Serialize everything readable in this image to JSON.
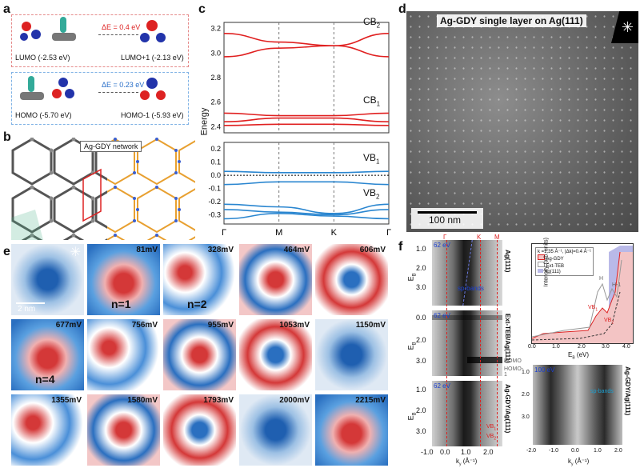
{
  "panel_a": {
    "label": "a",
    "lumo": "LUMO (-2.53 eV)",
    "lumo1": "LUMO+1 (-2.13 eV)",
    "delta_top": "ΔE = 0.4 eV",
    "homo": "HOMO (-5.70 eV)",
    "homo1": "HOMO-1 (-5.93 eV)",
    "delta_bottom": "ΔE = 0.23 eV"
  },
  "panel_b": {
    "label": "b",
    "title": "Ag-GDY network"
  },
  "panel_c": {
    "label": "c",
    "ylabel": "Energy",
    "band_labels": {
      "cb2": "CB",
      "cb2_sub": "2",
      "cb1": "CB",
      "cb1_sub": "1",
      "vb1": "VB",
      "vb1_sub": "1",
      "vb2": "VB",
      "vb2_sub": "2"
    },
    "chart_data": {
      "type": "line",
      "x_ticks": [
        "Γ",
        "M",
        "K",
        "Γ"
      ],
      "y_ticks_upper": [
        "3.2",
        "3.0",
        "2.8",
        "2.6",
        "2.4"
      ],
      "y_ticks_lower": [
        "0.2",
        "0.1",
        "0.0",
        "-0.1",
        "-0.2",
        "-0.3"
      ],
      "x": [
        0,
        1,
        2,
        3
      ],
      "series": [
        {
          "values": [
            3.16,
            3.09,
            3.06,
            3.16
          ]
        },
        {
          "values": [
            2.97,
            3.04,
            3.06,
            2.97
          ]
        },
        {
          "values": [
            2.51,
            2.49,
            2.49,
            2.51
          ]
        },
        {
          "values": [
            2.44,
            2.47,
            2.47,
            2.44
          ]
        },
        {
          "values": [
            2.41,
            2.42,
            2.42,
            2.41
          ]
        },
        {
          "values": [
            0.03,
            0.02,
            0.02,
            0.03
          ]
        },
        {
          "values": [
            -0.07,
            -0.05,
            -0.05,
            -0.07
          ]
        },
        {
          "values": [
            -0.22,
            -0.24,
            -0.29,
            -0.22
          ]
        },
        {
          "values": [
            -0.26,
            -0.28,
            -0.3,
            -0.26
          ]
        },
        {
          "values": [
            -0.33,
            -0.29,
            -0.31,
            -0.33
          ]
        }
      ]
    }
  },
  "panel_d": {
    "label": "d",
    "title": "Ag-GDY single layer on Ag(111)",
    "scalebar": "100 nm"
  },
  "panel_e": {
    "label": "e",
    "scalebar": "2 nm",
    "panels": [
      {
        "v": "",
        "n": ""
      },
      {
        "v": "81mV",
        "n": "n=1"
      },
      {
        "v": "328mV",
        "n": "n=2"
      },
      {
        "v": "464mV",
        "n": ""
      },
      {
        "v": "606mV",
        "n": ""
      },
      {
        "v": "677mV",
        "n": "n=4"
      },
      {
        "v": "756mV",
        "n": ""
      },
      {
        "v": "955mV",
        "n": ""
      },
      {
        "v": "1053mV",
        "n": ""
      },
      {
        "v": "1150mV",
        "n": ""
      },
      {
        "v": "1355mV",
        "n": ""
      },
      {
        "v": "1580mV",
        "n": ""
      },
      {
        "v": "1793mV",
        "n": ""
      },
      {
        "v": "2000mV",
        "n": ""
      },
      {
        "v": "2215mV",
        "n": ""
      }
    ]
  },
  "panel_f": {
    "label": "f",
    "arpes_labels": [
      "Ag(111)",
      "Ext-TEB/Ag(111)",
      "Ag-GDY/Ag(111)"
    ],
    "photon": "62 eV",
    "photon2": "100 eV",
    "sp_bands": "sp-bands",
    "homo": "HOMO",
    "homo1": "HOMO-1",
    "vb1": "VB",
    "vb2": "VB",
    "sym_points": [
      "Γ",
      "K",
      "M"
    ],
    "xlabel": "k",
    "xlabel_unit": "(Å⁻¹)",
    "ylabel": "E",
    "x_ticks": [
      "-1.0",
      "0.0",
      "1.0",
      "2.0"
    ],
    "x_ticks2": [
      "-2.0",
      "-1.0",
      "0.0",
      "1.0",
      "2.0"
    ],
    "y_ticks": [
      "0.0",
      "1.0",
      "2.0",
      "3.0"
    ],
    "spectrum": {
      "legend_title": "k =1.35 Å⁻¹, |Δk|=0.4 Å⁻¹",
      "legend": [
        "Ag-GDY",
        "Ext-TEB",
        "Ag(111)"
      ],
      "ylabel": "Intensity (arb. units)",
      "xlabel": "E",
      "xlabel_unit": "(eV)",
      "x_ticks": [
        "0.0",
        "1.0",
        "2.0",
        "3.0",
        "4.0"
      ],
      "peaks": [
        "H",
        "H-1",
        "VB",
        "VB"
      ]
    }
  }
}
